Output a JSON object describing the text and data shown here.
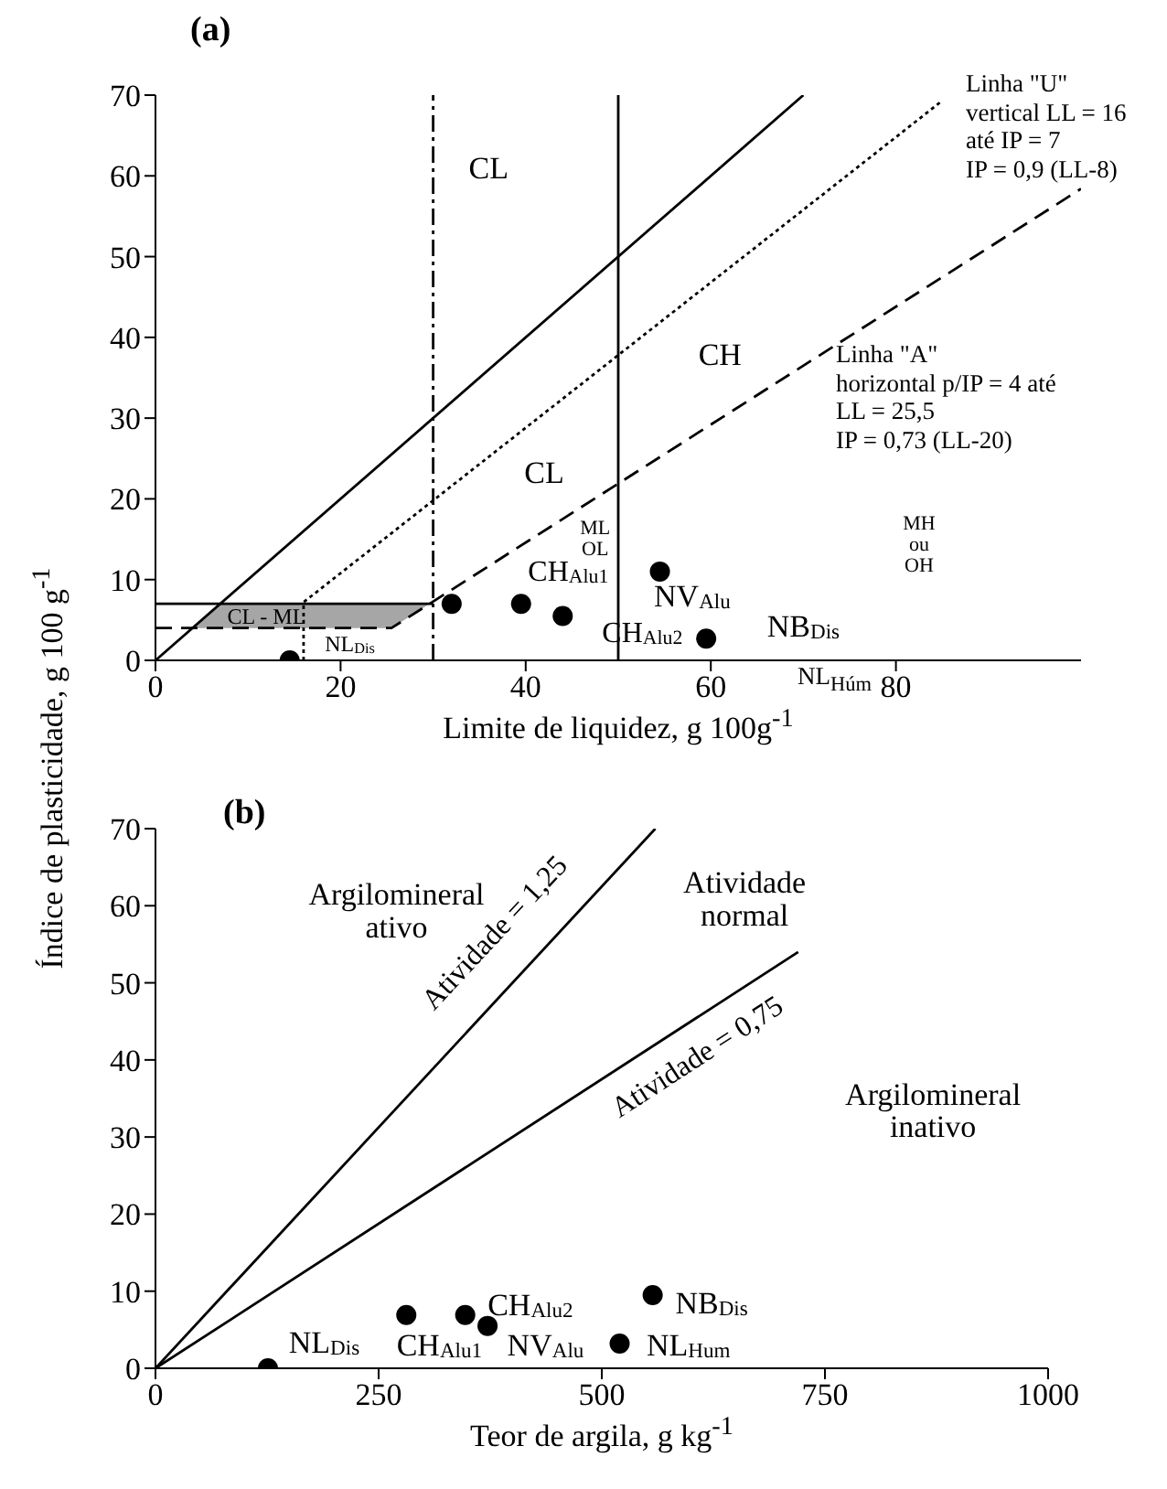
{
  "chart_data": [
    {
      "type": "scatter",
      "title": "(a)",
      "xlabel": "Limite de liquidez, g 100g$^{-1}$",
      "ylabel": "Índice de plasticidade, g 100 g$^{-1}$",
      "xlim": [
        0,
        100
      ],
      "xticks": [
        0,
        20,
        40,
        60,
        80
      ],
      "ylim": [
        0,
        70
      ],
      "yticks": [
        0,
        10,
        20,
        30,
        40,
        50,
        60,
        70
      ],
      "series": [
        {
          "type": "line",
          "color": "#000000",
          "line_style": "solid",
          "x": [
            0,
            70
          ],
          "values": [
            0,
            70
          ]
        },
        {
          "type": "line",
          "color": "#000000",
          "line_style": "dotted",
          "x": [
            16,
            16,
            85
          ],
          "values": [
            0,
            7.2,
            69.3
          ]
        },
        {
          "type": "line",
          "color": "#000000",
          "line_style": "dashed",
          "x": [
            0,
            25.5,
            100
          ],
          "values": [
            4,
            4,
            58.4
          ]
        },
        {
          "type": "line",
          "color": "#000000",
          "line_style": "solid",
          "x": [
            0,
            30
          ],
          "values": [
            7,
            7
          ]
        },
        {
          "type": "scatter",
          "color": "#000000",
          "marker": "circle",
          "x": [
            14.5,
            32,
            39.5,
            44,
            54.5,
            59.5
          ],
          "values": [
            0,
            7,
            7,
            5.5,
            11,
            2.7
          ]
        }
      ],
      "ref_lines": [
        {
          "axis": "x",
          "value": 30,
          "line_style": "dashdot",
          "color": "#000000"
        },
        {
          "axis": "x",
          "value": 50,
          "line_style": "solid",
          "color": "#000000"
        }
      ],
      "annotations": [
        "CL",
        "CH",
        "CL",
        "ML\nOL",
        "MH\nou\nOH",
        "CL - ML",
        "NL$_{Dis}$",
        "CH$_{Alu1}$",
        "NV$_{Alu}$",
        "CH$_{Alu2}$",
        "NB$_{Dis}$",
        "Linha \"U\"\nvertical LL = 16\naté IP = 7\nIP = 0,9 (LL-8)",
        "Linha \"A\"\nhorizontal p/IP = 4 até\nLL = 25,5\nIP = 0,73 (LL-20)",
        "NL$_{Húm}$"
      ]
    },
    {
      "type": "scatter",
      "title": "(b)",
      "xlabel": "Teor de argila, g kg$^{-1}$",
      "xlim": [
        0,
        1000
      ],
      "xticks": [
        0,
        250,
        500,
        750,
        1000
      ],
      "ylim": [
        0,
        70
      ],
      "yticks": [
        0,
        10,
        20,
        30,
        40,
        50,
        60,
        70
      ],
      "series": [
        {
          "type": "line",
          "color": "#000000",
          "line_style": "solid",
          "x": [
            0,
            560
          ],
          "values": [
            0,
            70
          ]
        },
        {
          "type": "line",
          "color": "#000000",
          "line_style": "solid",
          "x": [
            0,
            720
          ],
          "values": [
            0,
            54
          ]
        },
        {
          "type": "scatter",
          "color": "#000000",
          "marker": "circle",
          "x": [
            126,
            281,
            347,
            372,
            520,
            557
          ],
          "values": [
            0,
            6.9,
            6.9,
            5.5,
            3.2,
            9.5
          ]
        }
      ],
      "annotations": [
        "Argilomineral\nativo",
        "Atividade\nnormal",
        "Argilomineral\ninativo",
        "Atividade = 1,25",
        "Atividade = 0,75",
        "NL$_{Dis}$",
        "CH$_{Alu1}$",
        "CH$_{Alu2}$",
        "NV$_{Alu}$",
        "NL$_{Hum}$",
        "NB$_{Dis}$"
      ]
    }
  ]
}
